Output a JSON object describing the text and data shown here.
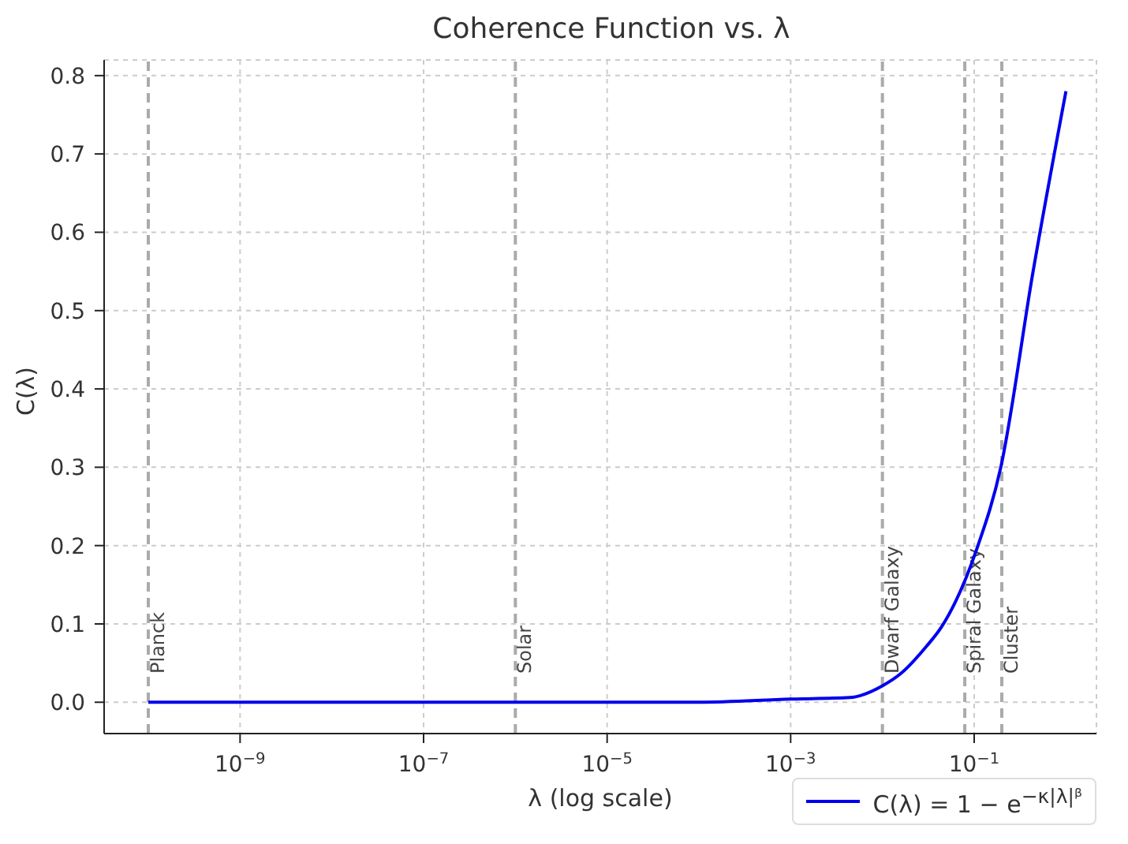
{
  "chart_data": {
    "type": "line",
    "title": "Coherence Function vs. λ",
    "xlabel": "λ (log scale)",
    "ylabel": "C(λ)",
    "log": "x",
    "grid": true,
    "legend": "bottom right",
    "line_style": "solid",
    "marker": "none",
    "xlim": [
      3.3e-11,
      2.15
    ],
    "ylim": [
      -0.04,
      0.82
    ],
    "xticks": [
      {
        "value": 1e-09,
        "label": "10$^{−9}$"
      },
      {
        "value": 1e-07,
        "label": "10$^{−7}$"
      },
      {
        "value": 1e-05,
        "label": "10$^{−5}$"
      },
      {
        "value": 0.001,
        "label": "10$^{−3}$"
      },
      {
        "value": 0.1,
        "label": "10$^{−1}$"
      }
    ],
    "yticks": [
      {
        "value": 0,
        "label": "0.0"
      },
      0.1,
      0.2,
      0.3,
      0.4,
      0.5,
      0.6,
      0.7,
      0.8
    ],
    "series": [
      {
        "name": "C(λ) = 1 − e$^{−κ|λ|ᵝ}$",
        "color": "#0000ee",
        "x": [
          1e-10,
          1e-08,
          1e-06,
          0.0001,
          0.001,
          0.0044,
          0.01,
          0.016,
          0.03,
          0.044,
          0.107,
          0.195,
          0.44,
          1
        ],
        "values": [
          0,
          0,
          0,
          0,
          0.004,
          0.006,
          0.021,
          0.037,
          0.071,
          0.096,
          0.196,
          0.3,
          0.551,
          0.78
        ]
      }
    ],
    "ref_lines": [
      {
        "axis": "x",
        "value": 1e-10,
        "label": "Planck",
        "color": "#aaaaaa",
        "line_style": "dashed"
      },
      {
        "axis": "x",
        "value": 1e-06,
        "label": "Solar",
        "color": "#aaaaaa",
        "line_style": "dashed"
      },
      {
        "axis": "x",
        "value": 0.01,
        "label": "Dwarf Galaxy",
        "color": "#aaaaaa",
        "line_style": "dashed"
      },
      {
        "axis": "x",
        "value": 0.079,
        "label": "Spiral Galaxy",
        "color": "#aaaaaa",
        "line_style": "dashed"
      },
      {
        "axis": "x",
        "value": 0.2,
        "label": "Cluster",
        "color": "#aaaaaa",
        "line_style": "dashed"
      }
    ]
  }
}
